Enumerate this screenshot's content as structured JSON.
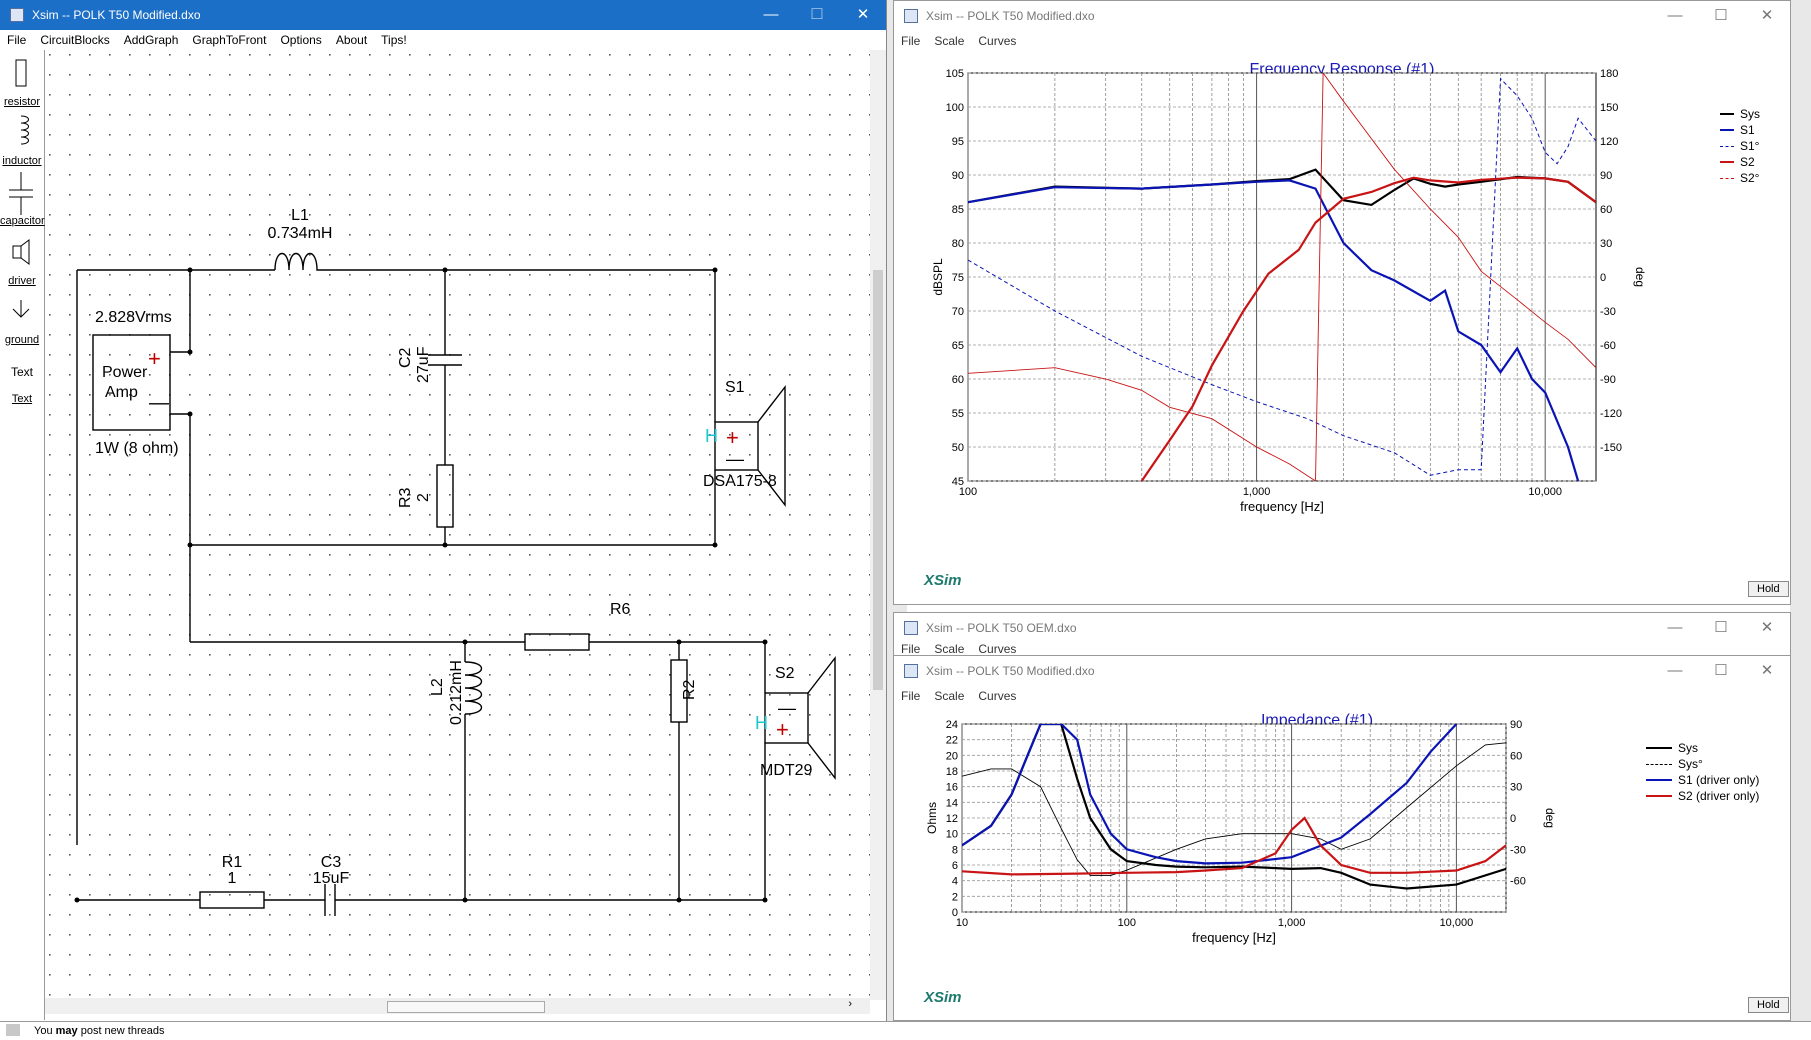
{
  "schematic": {
    "title": "Xsim -- POLK T50 Modified.dxo",
    "menu": [
      "File",
      "CircuitBlocks",
      "AddGraph",
      "GraphToFront",
      "Options",
      "About",
      "Tips!"
    ],
    "tools": [
      "resistor",
      "inductor",
      "capacitor",
      "driver",
      "ground",
      "Text"
    ],
    "tool_text_icon": "Text",
    "components": {
      "L1": {
        "name": "L1",
        "value": "0.734mH"
      },
      "C2": {
        "name": "C2",
        "value": "27uF"
      },
      "R3": {
        "name": "R3",
        "value": "2"
      },
      "S1": {
        "name": "S1",
        "model": "DSA175-8"
      },
      "R6": {
        "name": "R6"
      },
      "L2": {
        "name": "L2",
        "value": "0.212mH"
      },
      "R2": {
        "name": "R2"
      },
      "S2": {
        "name": "S2",
        "model": "MDT29"
      },
      "R1": {
        "name": "R1",
        "value": "1"
      },
      "C3": {
        "name": "C3",
        "value": "15uF"
      },
      "amp": {
        "voltage": "2.828Vrms",
        "label_line1": "Power",
        "label_line2": "Amp",
        "power": "1W (8 ohm)"
      }
    },
    "status": {
      "prefix": "You ",
      "bold": "may",
      "suffix": " post new threads"
    }
  },
  "freq_window": {
    "title": "Xsim -- POLK T50 Modified.dxo",
    "menu": [
      "File",
      "Scale",
      "Curves"
    ],
    "plot_title": "Frequency Response (#1)",
    "hold": "Hold",
    "logo": "XSim"
  },
  "oem_window": {
    "title": "Xsim -- POLK T50 OEM.dxo",
    "menu": [
      "File",
      "Scale",
      "Curves"
    ]
  },
  "imp_window": {
    "title": "Xsim -- POLK T50 Modified.dxo",
    "menu": [
      "File",
      "Scale",
      "Curves"
    ],
    "plot_title": "Impedance (#1)",
    "hold": "Hold",
    "logo": "XSim"
  },
  "colors": {
    "sys": "#000000",
    "s1": "#0a14b4",
    "s2": "#c81414",
    "title_blue": "#1a1ab4",
    "logo": "#1e7a6e"
  },
  "chart_data": [
    {
      "type": "line",
      "title": "Frequency Response (#1)",
      "xlabel": "frequency [Hz]",
      "ylabel": "dBSPL",
      "y2label": "deg",
      "xscale": "log",
      "xlim": [
        100,
        15000
      ],
      "ylim": [
        45,
        105
      ],
      "y2lim": [
        -180,
        180
      ],
      "xticks": [
        "100",
        "1,000",
        "10,000"
      ],
      "yticks": [
        "45",
        "50",
        "55",
        "60",
        "65",
        "70",
        "75",
        "80",
        "85",
        "90",
        "95",
        "100",
        "105"
      ],
      "y2ticks": [
        "-150",
        "-120",
        "-90",
        "-60",
        "-30",
        "0",
        "30",
        "60",
        "90",
        "120",
        "150",
        "180"
      ],
      "legend": [
        "Sys",
        "S1",
        "S1°",
        "S2",
        "S2°"
      ],
      "legend_position": "top-right",
      "grid": true,
      "series": [
        {
          "name": "Sys",
          "axis": "y",
          "x": [
            100,
            200,
            400,
            700,
            1000,
            1300,
            1600,
            2000,
            2500,
            3000,
            3500,
            4000,
            4500,
            5000,
            6000,
            8000,
            10000,
            12000,
            15000
          ],
          "values": [
            86,
            88.3,
            88,
            88.6,
            89.1,
            89.4,
            90.8,
            86.3,
            85.6,
            87.8,
            89.5,
            88.7,
            88.3,
            88.6,
            89.0,
            89.7,
            89.5,
            89.0,
            86.0
          ]
        },
        {
          "name": "S1",
          "axis": "y",
          "x": [
            100,
            200,
            400,
            700,
            1000,
            1300,
            1600,
            2000,
            2500,
            3000,
            4000,
            4500,
            5000,
            6000,
            7000,
            8000,
            9000,
            10000,
            12000,
            13000
          ],
          "values": [
            86,
            88.2,
            88,
            88.6,
            89.0,
            89.2,
            88.0,
            80.0,
            76.0,
            74.5,
            71.5,
            73.0,
            67.0,
            65.0,
            61.0,
            64.5,
            60.0,
            58.0,
            50.0,
            45.0
          ]
        },
        {
          "name": "S1°",
          "axis": "y2",
          "x": [
            100,
            200,
            400,
            700,
            1000,
            1500,
            2000,
            3000,
            4000,
            5000,
            6000,
            7000,
            8000,
            9000,
            10000,
            11000,
            12000,
            13000,
            15000
          ],
          "values": [
            15,
            -30,
            -70,
            -95,
            -110,
            -125,
            -140,
            -155,
            -175,
            -170,
            -170,
            175,
            160,
            140,
            110,
            100,
            115,
            140,
            120
          ]
        },
        {
          "name": "S2",
          "axis": "y",
          "x": [
            400,
            500,
            600,
            700,
            900,
            1100,
            1400,
            1600,
            2000,
            2500,
            3000,
            3500,
            4000,
            5000,
            6000,
            8000,
            10000,
            12000,
            15000
          ],
          "values": [
            45,
            51,
            56,
            62,
            70,
            75.5,
            79,
            83,
            86.5,
            87.5,
            88.8,
            89.6,
            89.2,
            88.9,
            89.3,
            89.6,
            89.5,
            89.0,
            86.0
          ]
        },
        {
          "name": "S2°",
          "axis": "y2",
          "x": [
            100,
            200,
            300,
            400,
            500,
            700,
            1000,
            1300,
            1600,
            1700,
            2000,
            3000,
            4000,
            5000,
            6000,
            8000,
            10000,
            12000,
            15000
          ],
          "values": [
            -85,
            -80,
            -90,
            -100,
            -115,
            -125,
            -150,
            -165,
            -180,
            180,
            155,
            95,
            60,
            35,
            5,
            -20,
            -40,
            -55,
            -80
          ]
        }
      ]
    },
    {
      "type": "line",
      "title": "Impedance (#1)",
      "xlabel": "frequency [Hz]",
      "ylabel": "Ohms",
      "y2label": "deg",
      "xscale": "log",
      "xlim": [
        10,
        20000
      ],
      "ylim": [
        0,
        24
      ],
      "y2lim": [
        -90,
        90
      ],
      "xticks": [
        "10",
        "100",
        "1,000",
        "10,000"
      ],
      "yticks": [
        "0",
        "2",
        "4",
        "6",
        "8",
        "10",
        "12",
        "14",
        "16",
        "18",
        "20",
        "22",
        "24"
      ],
      "y2ticks": [
        "-60",
        "-30",
        "0",
        "30",
        "60",
        "90"
      ],
      "legend": [
        "Sys",
        "Sys°",
        "S1 (driver only)",
        "S2 (driver only)"
      ],
      "legend_position": "top-right",
      "grid": true,
      "series": [
        {
          "name": "Sys",
          "axis": "y",
          "x": [
            10,
            15,
            20,
            25,
            30,
            35,
            40,
            50,
            60,
            80,
            100,
            150,
            200,
            300,
            500,
            800,
            1000,
            1500,
            2000,
            3000,
            5000,
            10000,
            20000
          ],
          "values": [
            8.5,
            11,
            15,
            20,
            24,
            24,
            24,
            17,
            12,
            8,
            6.5,
            6,
            5.8,
            5.7,
            5.8,
            5.6,
            5.5,
            5.6,
            5.0,
            3.5,
            3.0,
            3.5,
            5.5
          ]
        },
        {
          "name": "Sys°",
          "axis": "y2",
          "x": [
            10,
            15,
            20,
            30,
            40,
            50,
            60,
            80,
            100,
            200,
            300,
            500,
            1000,
            1500,
            2000,
            3000,
            5000,
            10000,
            15000,
            20000
          ],
          "values": [
            40,
            47,
            47,
            30,
            -10,
            -40,
            -55,
            -55,
            -50,
            -30,
            -20,
            -15,
            -15,
            -20,
            -30,
            -20,
            10,
            50,
            70,
            72
          ]
        },
        {
          "name": "S1 (driver only)",
          "axis": "y",
          "x": [
            10,
            15,
            20,
            25,
            30,
            35,
            40,
            50,
            60,
            80,
            100,
            150,
            200,
            300,
            500,
            1000,
            2000,
            3000,
            5000,
            7000,
            10000
          ],
          "values": [
            8.5,
            11,
            15,
            20,
            24,
            24,
            24,
            22,
            15,
            10,
            8,
            7,
            6.5,
            6.2,
            6.3,
            7,
            9.5,
            12.5,
            16.5,
            20.5,
            24
          ]
        },
        {
          "name": "S2 (driver only)",
          "axis": "y",
          "x": [
            10,
            20,
            50,
            100,
            200,
            300,
            500,
            800,
            1000,
            1200,
            1500,
            2000,
            3000,
            5000,
            10000,
            15000,
            20000
          ],
          "values": [
            5.2,
            4.8,
            4.9,
            5.0,
            5.1,
            5.3,
            5.6,
            7.5,
            10.5,
            12,
            8.5,
            6.0,
            5.0,
            5.0,
            5.3,
            6.5,
            8.5
          ]
        }
      ]
    }
  ]
}
